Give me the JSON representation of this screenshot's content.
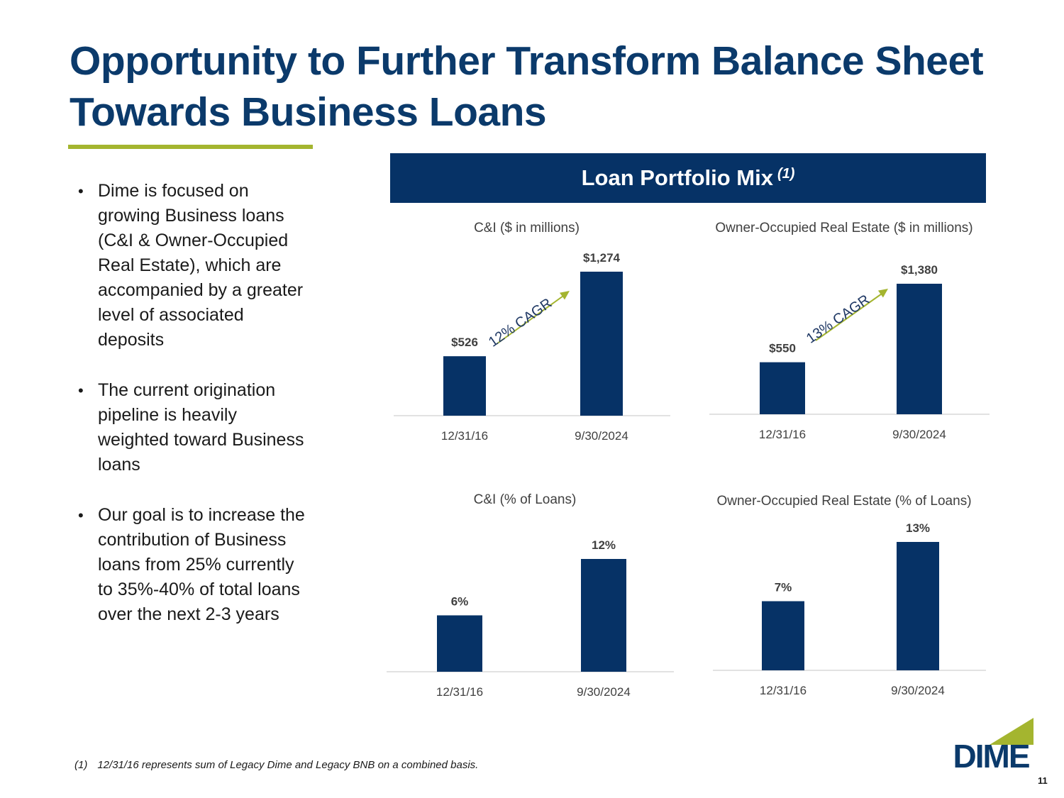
{
  "slide": {
    "title_line1": "Opportunity to Further Transform Balance Sheet",
    "title_line2": "Towards Business Loans",
    "page_number": "11"
  },
  "colors": {
    "navy": "#0b3a6b",
    "bar": "#063266",
    "accent_green": "#a4b52f",
    "axis_line": "#d9d9d9"
  },
  "bullets": [
    "Dime is focused on growing Business loans (C&I & Owner-Occupied Real Estate), which are accompanied by a greater level of associated deposits",
    "The current origination pipeline is heavily weighted toward Business loans",
    "Our goal is to increase the contribution of Business loans from 25% currently to 35%-40% of total loans over the next 2-3 years"
  ],
  "banner": {
    "title": "Loan Portfolio Mix",
    "footnote_ref": "(1)"
  },
  "chart_data": [
    {
      "type": "bar",
      "title": "C&I ($ in millions)",
      "categories": [
        "12/31/16",
        "9/30/2024"
      ],
      "values": [
        526,
        1274
      ],
      "value_labels": [
        "$526",
        "$1,274"
      ],
      "annotation": "12% CAGR"
    },
    {
      "type": "bar",
      "title": "Owner-Occupied Real Estate ($ in millions)",
      "categories": [
        "12/31/16",
        "9/30/2024"
      ],
      "values": [
        550,
        1380
      ],
      "value_labels": [
        "$550",
        "$1,380"
      ],
      "annotation": "13% CAGR"
    },
    {
      "type": "bar",
      "title": "C&I (% of Loans)",
      "categories": [
        "12/31/16",
        "9/30/2024"
      ],
      "values": [
        6,
        12
      ],
      "value_labels": [
        "6%",
        "12%"
      ]
    },
    {
      "type": "bar",
      "title": "Owner-Occupied Real Estate (% of Loans)",
      "categories": [
        "12/31/16",
        "9/30/2024"
      ],
      "values": [
        7,
        13
      ],
      "value_labels": [
        "7%",
        "13%"
      ]
    }
  ],
  "footnote": {
    "number": "(1)",
    "text": "12/31/16 represents sum of Legacy Dime and Legacy BNB on a combined basis."
  },
  "logo": {
    "text": "DIME"
  }
}
